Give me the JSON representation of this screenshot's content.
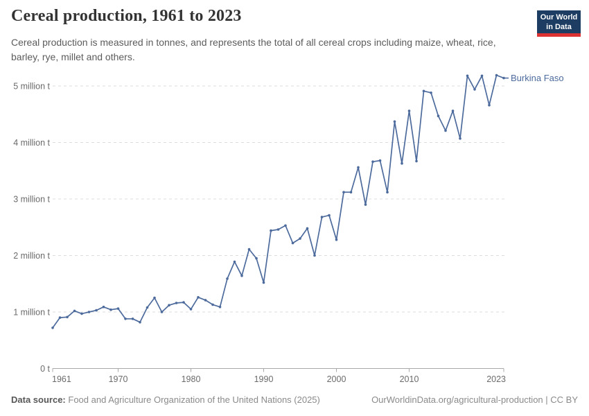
{
  "header": {
    "title": "Cereal production, 1961 to 2023",
    "subtitle": "Cereal production is measured in tonnes, and represents the total of all cereal crops including maize, wheat, rice, barley, rye, millet and others.",
    "logo": {
      "line1": "Our World",
      "line2": "in Data"
    }
  },
  "chart_data": {
    "type": "line",
    "title": "Cereal production, 1961 to 2023",
    "unit": "million tonnes",
    "grid": "horizontal dashed",
    "legend_position": "end-of-line label",
    "xlim": [
      1961,
      2023
    ],
    "ylim": [
      0,
      5.25
    ],
    "x_ticks": [
      1961,
      1970,
      1980,
      1990,
      2000,
      2010,
      2023
    ],
    "y_ticks": [
      {
        "value": 0,
        "label": "0 t"
      },
      {
        "value": 1,
        "label": "1 million t"
      },
      {
        "value": 2,
        "label": "2 million t"
      },
      {
        "value": 3,
        "label": "3 million t"
      },
      {
        "value": 4,
        "label": "4 million t"
      },
      {
        "value": 5,
        "label": "5 million t"
      }
    ],
    "years": [
      1961,
      1962,
      1963,
      1964,
      1965,
      1966,
      1967,
      1968,
      1969,
      1970,
      1971,
      1972,
      1973,
      1974,
      1975,
      1976,
      1977,
      1978,
      1979,
      1980,
      1981,
      1982,
      1983,
      1984,
      1985,
      1986,
      1987,
      1988,
      1989,
      1990,
      1991,
      1992,
      1993,
      1994,
      1995,
      1996,
      1997,
      1998,
      1999,
      2000,
      2001,
      2002,
      2003,
      2004,
      2005,
      2006,
      2007,
      2008,
      2009,
      2010,
      2011,
      2012,
      2013,
      2014,
      2015,
      2016,
      2017,
      2018,
      2019,
      2020,
      2021,
      2022,
      2023
    ],
    "series": [
      {
        "name": "Burkina Faso",
        "color": "#4c6a9c",
        "values": [
          0.72,
          0.9,
          0.91,
          1.02,
          0.97,
          1.0,
          1.03,
          1.09,
          1.04,
          1.06,
          0.88,
          0.88,
          0.82,
          1.08,
          1.25,
          1.0,
          1.12,
          1.16,
          1.17,
          1.05,
          1.26,
          1.21,
          1.13,
          1.09,
          1.59,
          1.89,
          1.64,
          2.11,
          1.95,
          1.52,
          2.44,
          2.46,
          2.53,
          2.22,
          2.3,
          2.48,
          2.0,
          2.68,
          2.71,
          2.28,
          3.12,
          3.12,
          3.56,
          2.9,
          3.66,
          3.68,
          3.12,
          4.37,
          3.63,
          4.56,
          3.67,
          4.91,
          4.88,
          4.47,
          4.21,
          4.56,
          4.07,
          5.18,
          4.94,
          5.18,
          4.66,
          5.19,
          5.14
        ]
      }
    ]
  },
  "footer": {
    "datasource_label": "Data source:",
    "datasource_text": "Food and Agriculture Organization of the United Nations (2025)",
    "credit": "OurWorldinData.org/agricultural-production | CC BY"
  },
  "colors": {
    "line": "#4c6a9c",
    "gridline": "#dddddd",
    "axis": "#a8a8a8",
    "tick_text": "#6b6b6b",
    "logo_bg": "#1d3d63",
    "logo_bar": "#dc3232"
  }
}
